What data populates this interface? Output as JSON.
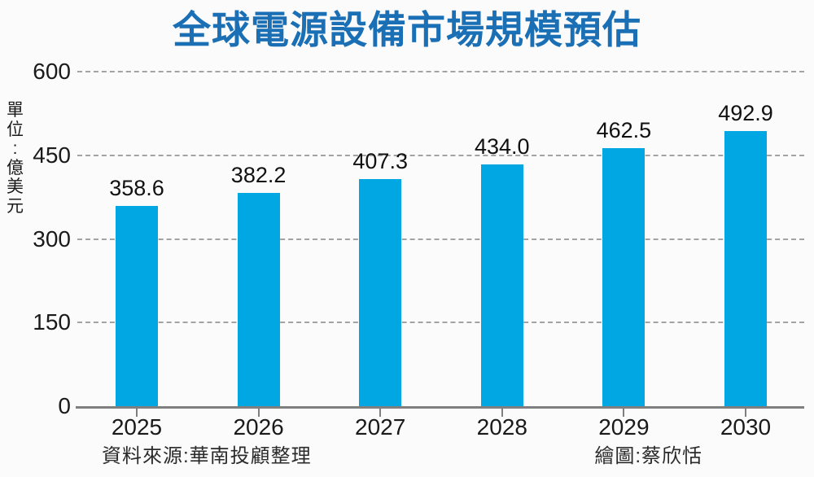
{
  "title": "全球電源設備市場規模預估",
  "unit_label": "單位:億美元",
  "footer": {
    "source": "資料來源:華南投顧整理",
    "credit": "繪圖:蔡欣恬"
  },
  "colors": {
    "bar": "#00a7e2",
    "title": "#1a6fb5",
    "grid": "#a3a3a3",
    "axis": "#7f7f7f",
    "text": "#1a1a1a",
    "background": "#fbfbfb"
  },
  "chart_data": {
    "type": "bar",
    "title": "全球電源設備市場規模預估",
    "ylabel": "單位:億美元",
    "categories": [
      "2025",
      "2026",
      "2027",
      "2028",
      "2029",
      "2030"
    ],
    "values": [
      358.6,
      382.2,
      407.3,
      434.0,
      462.5,
      492.9
    ],
    "value_decimals": 1,
    "ylim": [
      0,
      600
    ],
    "yticks": [
      0,
      150,
      300,
      450,
      600
    ],
    "grid": "horizontal-dashed",
    "legend": "none",
    "bar_color": "#00a7e2"
  }
}
